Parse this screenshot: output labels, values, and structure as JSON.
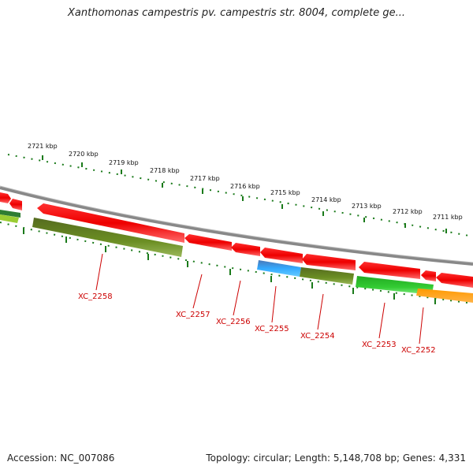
{
  "title": "Xanthomonas campestris pv. campestris str. 8004, complete ge...",
  "footer": {
    "accession": "Accession: NC_007086",
    "summary": "Topology: circular; Length: 5,148,708 bp; Genes: 4,331"
  },
  "kbp_ticks": [
    {
      "label": "2721 kbp"
    },
    {
      "label": "2720 kbp"
    },
    {
      "label": "2719 kbp"
    },
    {
      "label": "2718 kbp"
    },
    {
      "label": "2717 kbp"
    },
    {
      "label": "2716 kbp"
    },
    {
      "label": "2715 kbp"
    },
    {
      "label": "2714 kbp"
    },
    {
      "label": "2713 kbp"
    },
    {
      "label": "2712 kbp"
    },
    {
      "label": "2711 kbp"
    }
  ],
  "gene_labels": [
    {
      "label": "XC_2258"
    },
    {
      "label": "XC_2257"
    },
    {
      "label": "XC_2256"
    },
    {
      "label": "XC_2255"
    },
    {
      "label": "XC_2254"
    },
    {
      "label": "XC_2253"
    },
    {
      "label": "XC_2252"
    }
  ],
  "colors": {
    "gene_red": "#ee0000",
    "olive": "#6b8e23",
    "green": "#33cc33",
    "blue": "#3399ff",
    "orange": "#ff8c00",
    "backbone": "#888888",
    "tick": "#1a7a1a",
    "label_red": "#cc0000"
  }
}
